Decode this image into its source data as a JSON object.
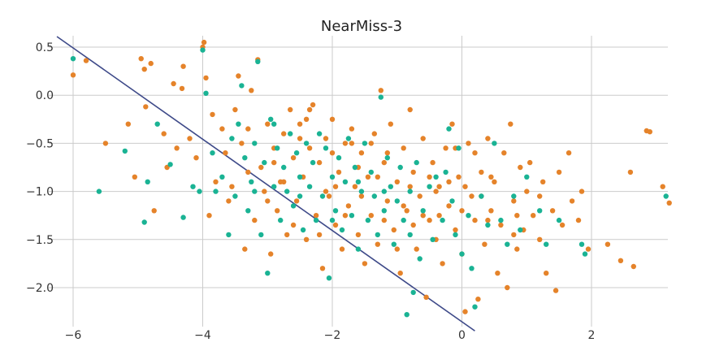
{
  "chart_data": {
    "type": "scatter",
    "title": "NearMiss-3",
    "xlabel": "",
    "ylabel": "",
    "xlim": [
      -6.3,
      3.3
    ],
    "ylim": [
      -2.4,
      0.62
    ],
    "grid": true,
    "x_ticks": [
      -6,
      -4,
      -2,
      0,
      2
    ],
    "y_ticks": [
      0.5,
      0.0,
      -0.5,
      -1.0,
      -1.5,
      -2.0
    ],
    "x_tick_labels": [
      "−6",
      "−4",
      "−2",
      "0",
      "2"
    ],
    "y_tick_labels": [
      "0.5",
      "0.0",
      "−0.5",
      "−1.0",
      "−1.5",
      "−2.0"
    ],
    "colors": {
      "background": "#ffffff",
      "grid": "#cbcbcb",
      "class_a": "#e5832a",
      "class_b": "#1ab394",
      "decision_line": "#3e4a89"
    },
    "decision_line": {
      "x": [
        -6.25,
        0.2
      ],
      "y": [
        0.61,
        -2.45
      ]
    },
    "series": [
      {
        "color": "#e5832a",
        "points": [
          [
            -6.0,
            0.21
          ],
          [
            -5.8,
            0.36
          ],
          [
            -5.5,
            -0.5
          ],
          [
            -5.15,
            -0.3
          ],
          [
            -5.05,
            -0.85
          ],
          [
            -4.95,
            0.38
          ],
          [
            -4.9,
            0.27
          ],
          [
            -4.88,
            -0.12
          ],
          [
            -4.8,
            0.33
          ],
          [
            -4.75,
            -1.2
          ],
          [
            -4.6,
            -0.4
          ],
          [
            -4.55,
            -0.75
          ],
          [
            -4.45,
            0.12
          ],
          [
            -4.4,
            -0.55
          ],
          [
            -4.32,
            0.07
          ],
          [
            -4.3,
            0.3
          ],
          [
            -4.2,
            -0.45
          ],
          [
            -4.1,
            -0.65
          ],
          [
            -4.0,
            0.5
          ],
          [
            -3.98,
            0.55
          ],
          [
            -3.95,
            0.18
          ],
          [
            -3.9,
            -1.25
          ],
          [
            -3.85,
            -0.2
          ],
          [
            -3.8,
            -0.9
          ],
          [
            -3.7,
            -0.35
          ],
          [
            -3.65,
            -0.6
          ],
          [
            -3.6,
            -1.1
          ],
          [
            -3.5,
            -0.15
          ],
          [
            -3.45,
            0.2
          ],
          [
            -3.4,
            -0.5
          ],
          [
            -3.35,
            -1.6
          ],
          [
            -3.3,
            -0.8
          ],
          [
            -3.25,
            0.05
          ],
          [
            -3.2,
            -1.3
          ],
          [
            -3.15,
            0.37
          ],
          [
            -3.1,
            -0.75
          ],
          [
            -3.05,
            -1.0
          ],
          [
            -3.0,
            -0.3
          ],
          [
            -2.95,
            -1.65
          ],
          [
            -2.9,
            -0.55
          ],
          [
            -2.85,
            -1.2
          ],
          [
            -2.8,
            -0.9
          ],
          [
            -2.75,
            -0.4
          ],
          [
            -2.7,
            -1.45
          ],
          [
            -2.65,
            -0.15
          ],
          [
            -2.6,
            -0.65
          ],
          [
            -2.55,
            -1.1
          ],
          [
            -2.5,
            -0.3
          ],
          [
            -2.45,
            -0.85
          ],
          [
            -2.4,
            -1.5
          ],
          [
            -2.35,
            -0.55
          ],
          [
            -2.3,
            -0.1
          ],
          [
            -2.25,
            -1.25
          ],
          [
            -2.2,
            -0.7
          ],
          [
            -2.15,
            -1.8
          ],
          [
            -2.1,
            -0.45
          ],
          [
            -2.05,
            -1.05
          ],
          [
            -2.0,
            -0.25
          ],
          [
            -1.95,
            -1.35
          ],
          [
            -1.9,
            -0.8
          ],
          [
            -1.85,
            -1.6
          ],
          [
            -1.8,
            -0.5
          ],
          [
            -1.75,
            -1.15
          ],
          [
            -1.7,
            -0.35
          ],
          [
            -1.65,
            -0.95
          ],
          [
            -1.6,
            -1.45
          ],
          [
            -1.55,
            -0.6
          ],
          [
            -1.5,
            -1.75
          ],
          [
            -1.45,
            -0.85
          ],
          [
            -1.4,
            -1.25
          ],
          [
            -1.35,
            -0.4
          ],
          [
            -1.3,
            -1.55
          ],
          [
            -1.25,
            0.05
          ],
          [
            -1.2,
            -0.7
          ],
          [
            -1.15,
            -1.1
          ],
          [
            -1.1,
            -0.3
          ],
          [
            -1.05,
            -1.4
          ],
          [
            -1.0,
            -0.9
          ],
          [
            -0.95,
            -1.85
          ],
          [
            -0.9,
            -0.55
          ],
          [
            -0.85,
            -1.2
          ],
          [
            -0.8,
            -0.15
          ],
          [
            -0.75,
            -0.8
          ],
          [
            -0.7,
            -1.6
          ],
          [
            -0.65,
            -1.05
          ],
          [
            -0.6,
            -0.45
          ],
          [
            -0.55,
            -2.1
          ],
          [
            -0.5,
            -1.3
          ],
          [
            -0.45,
            -0.7
          ],
          [
            -0.4,
            -1.5
          ],
          [
            -0.35,
            -0.95
          ],
          [
            -0.3,
            -1.75
          ],
          [
            -0.25,
            -0.55
          ],
          [
            -0.2,
            -1.15
          ],
          [
            -0.15,
            -0.3
          ],
          [
            -0.1,
            -1.4
          ],
          [
            -0.05,
            -0.85
          ],
          [
            0.0,
            -1.65
          ],
          [
            0.05,
            -2.25
          ],
          [
            0.1,
            -0.5
          ],
          [
            0.15,
            -1.05
          ],
          [
            0.2,
            -1.3
          ],
          [
            0.25,
            -2.12
          ],
          [
            0.3,
            -0.8
          ],
          [
            0.35,
            -1.55
          ],
          [
            0.4,
            -0.45
          ],
          [
            0.45,
            -1.2
          ],
          [
            0.5,
            -0.9
          ],
          [
            0.55,
            -1.85
          ],
          [
            0.6,
            -1.35
          ],
          [
            0.65,
            -0.6
          ],
          [
            0.7,
            -2.0
          ],
          [
            0.75,
            -0.3
          ],
          [
            0.8,
            -1.1
          ],
          [
            0.85,
            -1.6
          ],
          [
            0.9,
            -0.75
          ],
          [
            0.95,
            -1.4
          ],
          [
            1.0,
            -1.0
          ],
          [
            1.05,
            -0.7
          ],
          [
            1.1,
            -1.25
          ],
          [
            1.2,
            -1.5
          ],
          [
            1.25,
            -0.9
          ],
          [
            1.3,
            -1.85
          ],
          [
            1.4,
            -1.2
          ],
          [
            1.45,
            -2.03
          ],
          [
            1.5,
            -0.8
          ],
          [
            1.55,
            -1.35
          ],
          [
            1.65,
            -0.6
          ],
          [
            1.7,
            -1.1
          ],
          [
            1.8,
            -1.3
          ],
          [
            1.85,
            -1.0
          ],
          [
            1.95,
            -1.6
          ],
          [
            2.25,
            -1.55
          ],
          [
            2.45,
            -1.72
          ],
          [
            2.6,
            -0.8
          ],
          [
            2.65,
            -1.78
          ],
          [
            2.85,
            -0.37
          ],
          [
            2.9,
            -0.38
          ],
          [
            3.1,
            -0.95
          ],
          [
            3.2,
            -1.12
          ],
          [
            -3.55,
            -0.95
          ],
          [
            -3.0,
            -1.1
          ],
          [
            -2.6,
            -1.35
          ],
          [
            -2.2,
            -1.45
          ],
          [
            -1.8,
            -1.25
          ],
          [
            -1.4,
            -0.5
          ],
          [
            -1.0,
            -1.6
          ],
          [
            -0.6,
            -1.25
          ],
          [
            -0.2,
            -0.9
          ],
          [
            0.2,
            -0.6
          ],
          [
            -2.4,
            -0.25
          ],
          [
            -2.0,
            -0.6
          ],
          [
            -1.6,
            -0.75
          ],
          [
            -1.2,
            -1.3
          ],
          [
            -0.8,
            -0.95
          ],
          [
            -0.4,
            -1.0
          ],
          [
            0.0,
            -1.2
          ],
          [
            0.4,
            -1.3
          ],
          [
            0.8,
            -1.45
          ],
          [
            1.2,
            -1.05
          ],
          [
            -3.3,
            -0.35
          ],
          [
            -2.9,
            -0.7
          ],
          [
            -2.5,
            -0.45
          ],
          [
            -2.1,
            -1.0
          ],
          [
            -1.7,
            -0.5
          ],
          [
            -1.3,
            -0.85
          ],
          [
            -0.9,
            -1.15
          ],
          [
            -0.5,
            -0.85
          ],
          [
            -0.1,
            -0.55
          ],
          [
            0.3,
            -1.05
          ],
          [
            -2.75,
            -0.9
          ],
          [
            -2.35,
            -0.15
          ],
          [
            -1.95,
            -0.95
          ],
          [
            -1.55,
            -1.05
          ],
          [
            -1.15,
            -0.6
          ],
          [
            -0.75,
            -1.35
          ],
          [
            -0.35,
            -1.25
          ],
          [
            0.05,
            -0.95
          ],
          [
            0.45,
            -0.85
          ],
          [
            0.85,
            -1.25
          ]
        ]
      },
      {
        "color": "#1ab394",
        "points": [
          [
            -6.0,
            0.38
          ],
          [
            -5.6,
            -1.0
          ],
          [
            -5.2,
            -0.58
          ],
          [
            -4.9,
            -1.32
          ],
          [
            -4.85,
            -0.9
          ],
          [
            -4.7,
            -0.3
          ],
          [
            -4.5,
            -0.72
          ],
          [
            -4.3,
            -1.27
          ],
          [
            -4.15,
            -0.95
          ],
          [
            -4.05,
            -1.0
          ],
          [
            -4.0,
            0.47
          ],
          [
            -3.95,
            0.02
          ],
          [
            -3.85,
            -0.6
          ],
          [
            -3.8,
            -1.0
          ],
          [
            -3.7,
            -0.85
          ],
          [
            -3.6,
            -1.45
          ],
          [
            -3.55,
            -0.45
          ],
          [
            -3.5,
            -1.05
          ],
          [
            -3.45,
            -0.3
          ],
          [
            -3.4,
            0.1
          ],
          [
            -3.35,
            -0.65
          ],
          [
            -3.3,
            -1.2
          ],
          [
            -3.25,
            -0.9
          ],
          [
            -3.2,
            -0.5
          ],
          [
            -3.15,
            0.35
          ],
          [
            -3.1,
            -1.45
          ],
          [
            -3.05,
            -0.7
          ],
          [
            -3.0,
            -1.85
          ],
          [
            -2.95,
            -0.25
          ],
          [
            -2.9,
            -0.95
          ],
          [
            -2.85,
            -0.55
          ],
          [
            -2.8,
            -1.3
          ],
          [
            -2.75,
            -0.75
          ],
          [
            -2.7,
            -1.0
          ],
          [
            -2.65,
            -0.4
          ],
          [
            -2.6,
            -1.15
          ],
          [
            -2.55,
            -0.6
          ],
          [
            -2.5,
            -0.85
          ],
          [
            -2.45,
            -1.4
          ],
          [
            -2.4,
            -0.5
          ],
          [
            -2.35,
            -0.95
          ],
          [
            -2.3,
            -0.7
          ],
          [
            -2.25,
            -1.3
          ],
          [
            -2.2,
            -0.4
          ],
          [
            -2.15,
            -1.05
          ],
          [
            -2.1,
            -0.55
          ],
          [
            -2.05,
            -1.9
          ],
          [
            -2.0,
            -0.85
          ],
          [
            -1.95,
            -1.2
          ],
          [
            -1.9,
            -0.65
          ],
          [
            -1.85,
            -1.4
          ],
          [
            -1.8,
            -0.9
          ],
          [
            -1.75,
            -0.45
          ],
          [
            -1.7,
            -1.25
          ],
          [
            -1.65,
            -0.75
          ],
          [
            -1.6,
            -1.6
          ],
          [
            -1.55,
            -1.0
          ],
          [
            -1.5,
            -0.5
          ],
          [
            -1.45,
            -1.3
          ],
          [
            -1.4,
            -0.8
          ],
          [
            -1.35,
            -1.05
          ],
          [
            -1.3,
            -1.45
          ],
          [
            -1.25,
            -0.02
          ],
          [
            -1.2,
            -1.2
          ],
          [
            -1.15,
            -0.65
          ],
          [
            -1.1,
            -0.95
          ],
          [
            -1.05,
            -1.55
          ],
          [
            -1.0,
            -1.1
          ],
          [
            -0.95,
            -0.75
          ],
          [
            -0.9,
            -1.3
          ],
          [
            -0.85,
            -2.28
          ],
          [
            -0.8,
            -1.0
          ],
          [
            -0.75,
            -2.05
          ],
          [
            -0.7,
            -0.7
          ],
          [
            -0.65,
            -1.7
          ],
          [
            -0.6,
            -1.2
          ],
          [
            -0.5,
            -0.95
          ],
          [
            -0.45,
            -1.5
          ],
          [
            -0.4,
            -0.85
          ],
          [
            -0.3,
            -1.3
          ],
          [
            -0.25,
            -0.8
          ],
          [
            -0.2,
            -0.35
          ],
          [
            -0.15,
            -1.1
          ],
          [
            -0.1,
            -1.45
          ],
          [
            -0.05,
            -0.55
          ],
          [
            0.0,
            -1.65
          ],
          [
            0.1,
            -1.25
          ],
          [
            0.15,
            -1.8
          ],
          [
            0.2,
            -2.2
          ],
          [
            0.3,
            -1.05
          ],
          [
            0.4,
            -1.35
          ],
          [
            0.5,
            -0.5
          ],
          [
            0.6,
            -1.3
          ],
          [
            0.7,
            -1.55
          ],
          [
            0.8,
            -1.05
          ],
          [
            0.9,
            -1.4
          ],
          [
            1.0,
            -0.85
          ],
          [
            1.2,
            -1.2
          ],
          [
            1.3,
            -1.55
          ],
          [
            1.5,
            -1.3
          ],
          [
            1.85,
            -1.55
          ],
          [
            1.9,
            -1.65
          ],
          [
            3.15,
            -1.05
          ],
          [
            -3.2,
            -1.0
          ],
          [
            -2.9,
            -0.3
          ],
          [
            -2.5,
            -1.05
          ],
          [
            -2.0,
            -1.3
          ],
          [
            -1.6,
            -0.9
          ],
          [
            -1.2,
            -1.0
          ],
          [
            -0.8,
            -1.45
          ]
        ]
      }
    ]
  }
}
